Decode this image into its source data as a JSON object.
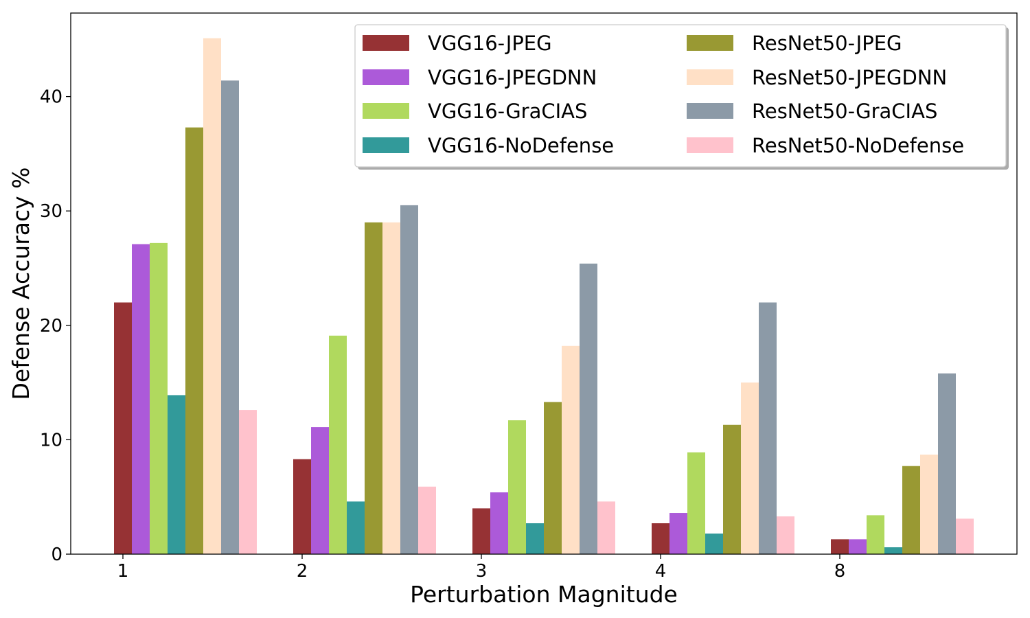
{
  "chart_data": {
    "type": "bar",
    "title": "",
    "xlabel": "Perturbation Magnitude",
    "ylabel": "Defense Accuracy %",
    "categories": [
      "1",
      "2",
      "3",
      "4",
      "8"
    ],
    "ylim": [
      0,
      47.3
    ],
    "yticks": [
      0,
      10,
      20,
      30,
      40
    ],
    "grid": false,
    "legend_position": "top-right",
    "legend_columns": 2,
    "series": [
      {
        "name": "VGG16-JPEG",
        "color": "#963234",
        "values": [
          22.0,
          8.3,
          4.0,
          2.7,
          1.3
        ]
      },
      {
        "name": "VGG16-JPEGDNN",
        "color": "#ac5ad9",
        "values": [
          27.1,
          11.1,
          5.4,
          3.6,
          1.3
        ]
      },
      {
        "name": "VGG16-GraCIAS",
        "color": "#b0d95e",
        "values": [
          27.2,
          19.1,
          11.7,
          8.9,
          3.4
        ]
      },
      {
        "name": "VGG16-NoDefense",
        "color": "#329a9a",
        "values": [
          13.9,
          4.6,
          2.7,
          1.8,
          0.6
        ]
      },
      {
        "name": "ResNet50-JPEG",
        "color": "#999933",
        "values": [
          37.3,
          29.0,
          13.3,
          11.3,
          7.7
        ]
      },
      {
        "name": "ResNet50-JPEGDNN",
        "color": "#ffe0c6",
        "values": [
          45.1,
          29.0,
          18.2,
          15.0,
          8.7
        ]
      },
      {
        "name": "ResNet50-GraCIAS",
        "color": "#8c9aa7",
        "values": [
          41.4,
          30.5,
          25.4,
          22.0,
          15.8
        ]
      },
      {
        "name": "ResNet50-NoDefense",
        "color": "#ffc2cc",
        "values": [
          12.6,
          5.9,
          4.6,
          3.3,
          3.1
        ]
      }
    ]
  }
}
